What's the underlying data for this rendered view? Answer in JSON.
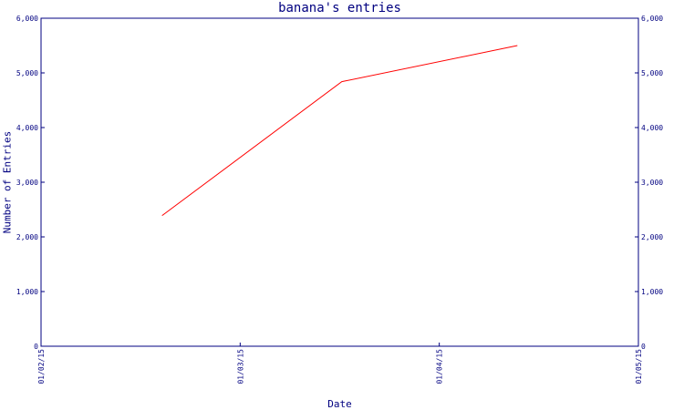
{
  "chart_data": {
    "type": "line",
    "title": "banana's entries",
    "xlabel": "Date",
    "ylabel": "Number of Entries",
    "x_ticks": [
      "01/02/15",
      "01/03/15",
      "01/04/15",
      "01/05/15"
    ],
    "x_tick_dates": [
      "2015-01-02",
      "2015-01-03",
      "2015-01-04",
      "2015-01-05"
    ],
    "xlim": [
      "2015-01-02",
      "2015-01-05"
    ],
    "y_ticks": [
      "0",
      "1,000",
      "2,000",
      "3,000",
      "4,000",
      "5,000",
      "6,000"
    ],
    "ylim": [
      0,
      6000
    ],
    "series": [
      {
        "x": [
          "2015-01-02 14:35",
          "2015-01-03 12:15",
          "2015-01-04 09:25"
        ],
        "values": [
          2390,
          4840,
          5500
        ]
      }
    ],
    "grid": false,
    "legend": "none"
  },
  "colors": {
    "axis": "#000080",
    "line": "#ff0000",
    "background": "#ffffff"
  }
}
